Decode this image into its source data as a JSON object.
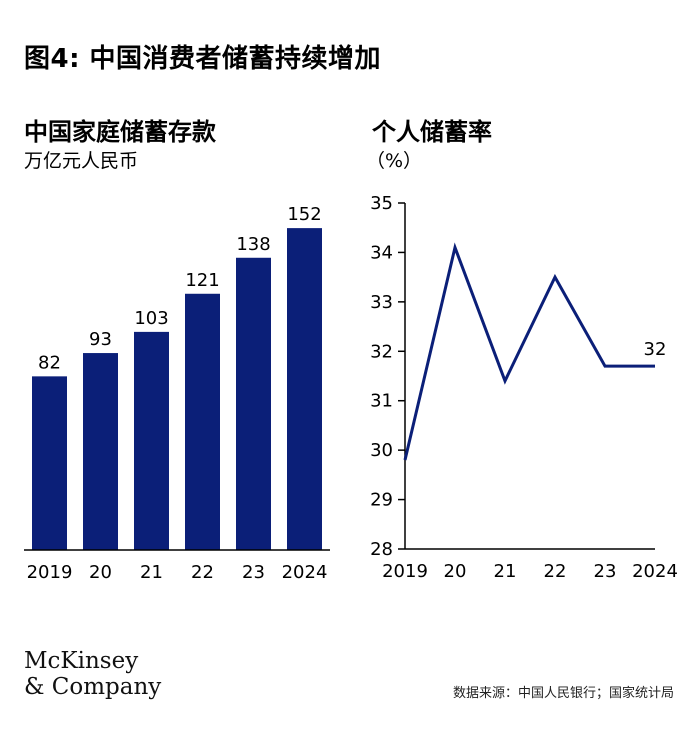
{
  "figure": {
    "title": "图4: 中国消费者储蓄持续增加",
    "logo": {
      "line1": "McKinsey",
      "line2": "& Company"
    },
    "source": "数据来源：中国人民银行；国家统计局"
  },
  "chart_data": [
    {
      "type": "bar",
      "title": "中国家庭储蓄存款",
      "subtitle": "万亿元人民币",
      "categories": [
        "2019",
        "20",
        "21",
        "22",
        "23",
        "2024"
      ],
      "values": [
        82,
        93,
        103,
        121,
        138,
        152
      ],
      "data_labels": [
        "82",
        "93",
        "103",
        "121",
        "138",
        "152"
      ],
      "ylim": [
        0,
        170
      ],
      "grid": false,
      "color": "#0b1f78"
    },
    {
      "type": "line",
      "title": "个人储蓄率",
      "subtitle": "（%）",
      "categories": [
        "2019",
        "20",
        "21",
        "22",
        "23",
        "2024"
      ],
      "values": [
        29.8,
        34.1,
        31.4,
        33.5,
        31.7,
        31.7
      ],
      "end_label": "32",
      "yticks": [
        "35",
        "34",
        "33",
        "32",
        "31",
        "30",
        "29",
        "28"
      ],
      "ylim": [
        28,
        35
      ],
      "grid": false,
      "color": "#0b1f78"
    }
  ]
}
